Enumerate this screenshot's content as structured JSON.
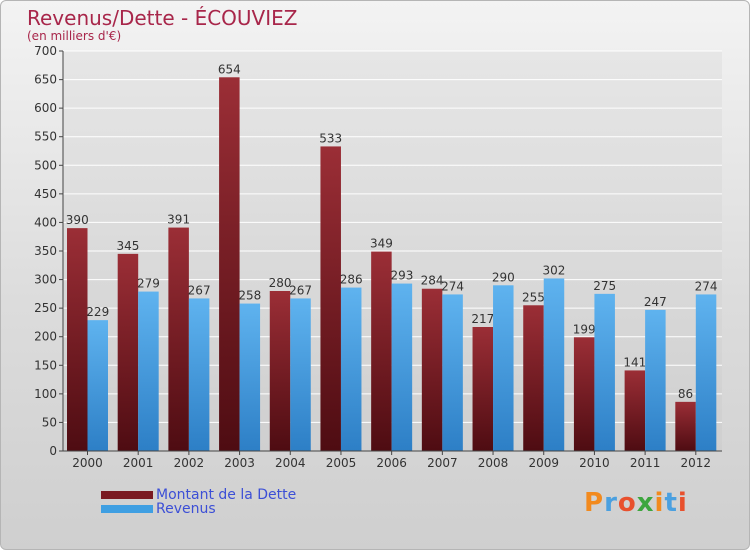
{
  "header": {
    "title": "Revenus/Dette - ÉCOUVIEZ",
    "subtitle": "(en milliers d'€)"
  },
  "chart_data": {
    "type": "bar",
    "title": "Revenus/Dette - ÉCOUVIEZ",
    "subtitle": "(en milliers d'€)",
    "xlabel": "",
    "ylabel": "",
    "ylim": [
      0,
      700
    ],
    "yticks": [
      0,
      50,
      100,
      150,
      200,
      250,
      300,
      350,
      400,
      450,
      500,
      550,
      600,
      650,
      700
    ],
    "grid": true,
    "legend_position": "bottom-left",
    "categories": [
      "2000",
      "2001",
      "2002",
      "2003",
      "2004",
      "2005",
      "2006",
      "2007",
      "2008",
      "2009",
      "2010",
      "2011",
      "2012"
    ],
    "series": [
      {
        "name": "Montant de la Dette",
        "color": "#7a1a22",
        "values": [
          390,
          345,
          391,
          654,
          280,
          533,
          349,
          284,
          217,
          255,
          199,
          141,
          86
        ]
      },
      {
        "name": "Revenus",
        "color": "#3f9fe2",
        "values": [
          229,
          279,
          267,
          258,
          267,
          286,
          293,
          274,
          290,
          302,
          275,
          247,
          274
        ]
      }
    ]
  },
  "legend": {
    "items": [
      {
        "label": "Montant de la Dette",
        "color": "#7a1a22"
      },
      {
        "label": "Revenus",
        "color": "#3f9fe2"
      }
    ]
  },
  "logo": {
    "letters": [
      "P",
      "r",
      "o",
      "x",
      "i",
      "t",
      "i"
    ],
    "colors": [
      "#f28a1e",
      "#4aa0e0",
      "#e8502d",
      "#3da63e",
      "#f28a1e",
      "#4aa0e0",
      "#e8502d"
    ]
  }
}
